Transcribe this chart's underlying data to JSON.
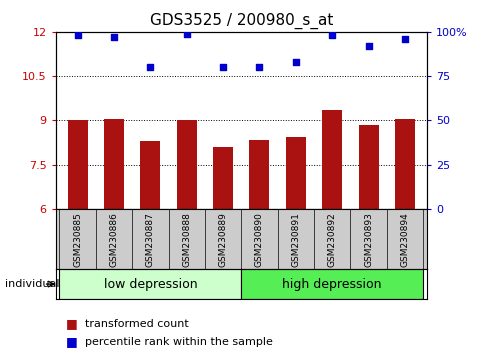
{
  "title": "GDS3525 / 200980_s_at",
  "samples": [
    "GSM230885",
    "GSM230886",
    "GSM230887",
    "GSM230888",
    "GSM230889",
    "GSM230890",
    "GSM230891",
    "GSM230892",
    "GSM230893",
    "GSM230894"
  ],
  "bar_values": [
    9.0,
    9.05,
    8.3,
    9.0,
    8.1,
    8.35,
    8.45,
    9.35,
    8.85,
    9.05
  ],
  "dot_values": [
    98,
    97,
    80,
    99,
    80,
    80,
    83,
    98,
    92,
    96
  ],
  "ylim_left": [
    6,
    12
  ],
  "ylim_right": [
    0,
    100
  ],
  "yticks_left": [
    6,
    7.5,
    9,
    10.5,
    12
  ],
  "ytick_labels_left": [
    "6",
    "7.5",
    "9",
    "10.5",
    "12"
  ],
  "yticks_right": [
    0,
    25,
    50,
    75,
    100
  ],
  "ytick_labels_right": [
    "0",
    "25",
    "50",
    "75",
    "100%"
  ],
  "bar_color": "#AA1111",
  "dot_color": "#0000CC",
  "group_labels": [
    "low depression",
    "high depression"
  ],
  "low_group_color": "#CCFFCC",
  "high_group_color": "#55EE55",
  "n_low": 5,
  "legend_bar_label": "transformed count",
  "legend_dot_label": "percentile rank within the sample",
  "individual_label": "individual",
  "left_tick_color": "#CC0000",
  "right_tick_color": "#0000CC",
  "title_fontsize": 11,
  "tick_label_fontsize": 8,
  "bar_width": 0.55,
  "background_color": "#FFFFFF",
  "plot_bg": "#FFFFFF",
  "grid_color": "#000000",
  "label_box_color": "#CCCCCC"
}
